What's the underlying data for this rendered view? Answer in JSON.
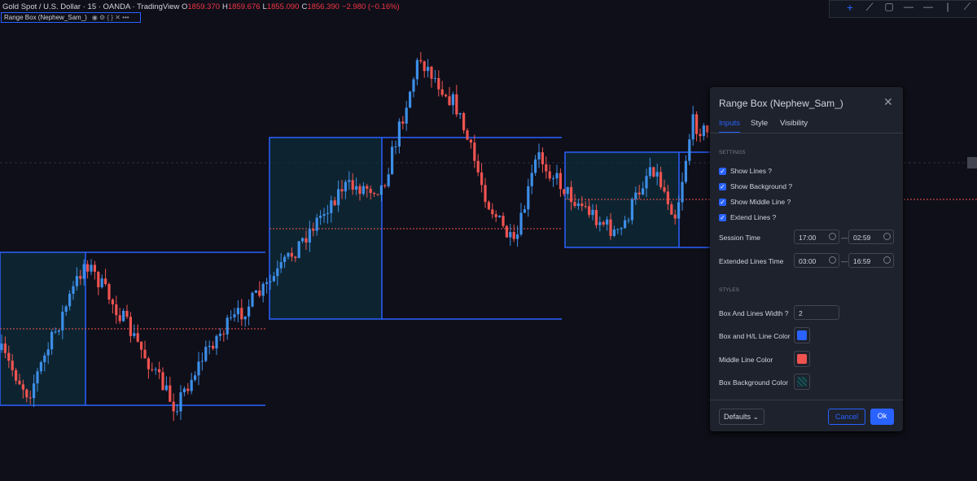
{
  "header": {
    "symbol": "Gold Spot / U.S. Dollar · 15 · OANDA · TradingView",
    "ohlc": [
      {
        "label": "O",
        "value": "1859.370"
      },
      {
        "label": "H",
        "value": "1859.676"
      },
      {
        "label": "L",
        "value": "1855.090"
      },
      {
        "label": "C",
        "value": "1856.390"
      }
    ],
    "change": "−2.980 (−0.16%)"
  },
  "indicator_label": "Range Box (Nephew_Sam_)",
  "dialog": {
    "title": "Range Box (Nephew_Sam_)",
    "tabs": [
      "Inputs",
      "Style",
      "Visibility"
    ],
    "settings_heading": "SETTINGS",
    "checkboxes": [
      "Show Lines ?",
      "Show Background ?",
      "Show Middle Line ?",
      "Extend Lines ?"
    ],
    "time_rows": [
      {
        "label": "Session Time",
        "start": "17:00",
        "end": "02:59"
      },
      {
        "label": "Extended Lines Time",
        "start": "03:00",
        "end": "16:59"
      }
    ],
    "dash": "—",
    "styles_heading": "STYLES",
    "width_row": {
      "label": "Box And Lines Width ?",
      "value": "2"
    },
    "color_rows": [
      "Box and H/L Line Color",
      "Middle Line Color",
      "Box Background Color"
    ],
    "defaults_button": "Defaults",
    "cancel_button": "Cancel",
    "ok_button": "Ok"
  }
}
